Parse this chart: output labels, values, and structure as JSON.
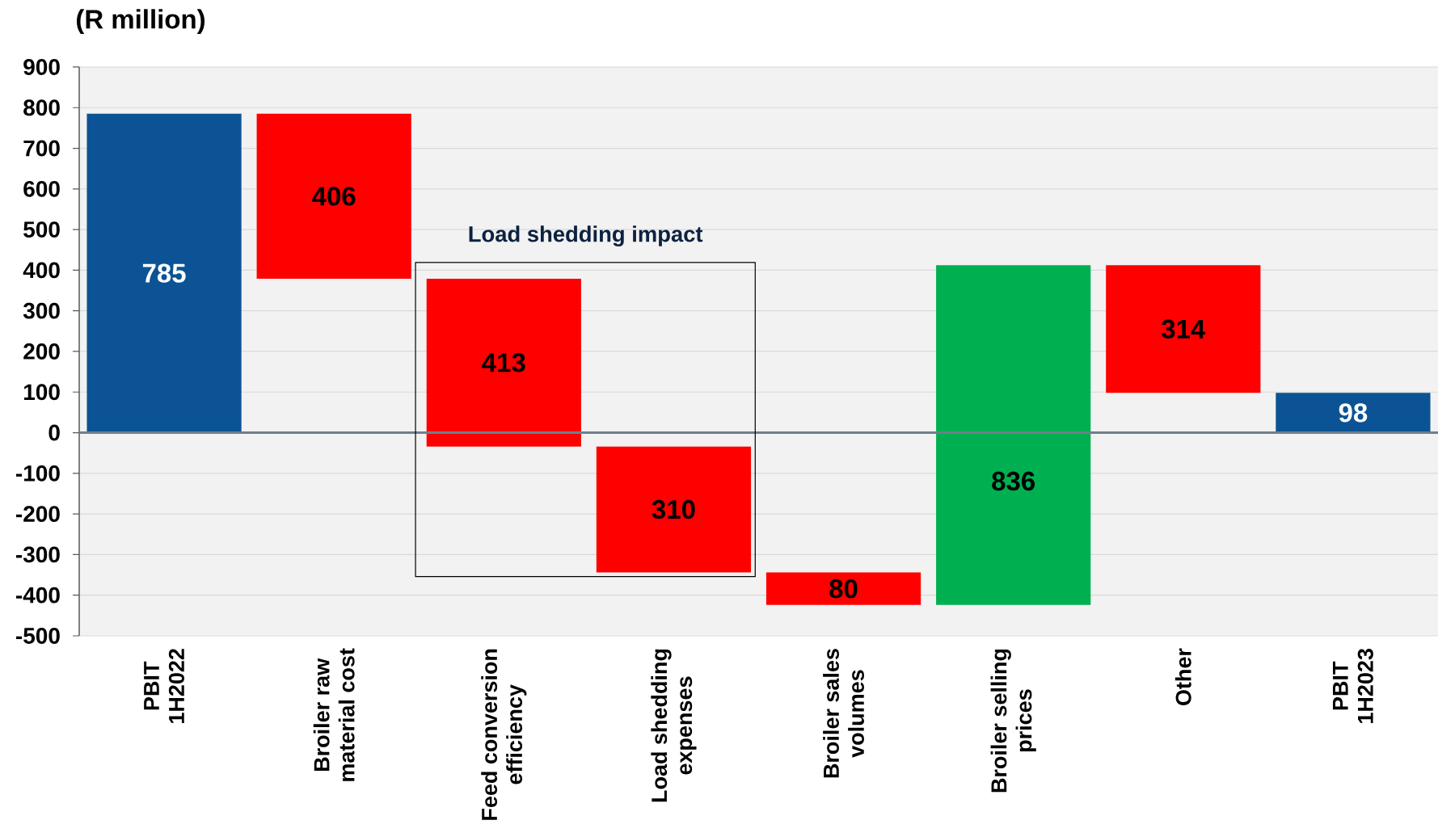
{
  "chart_data": {
    "type": "bar",
    "ylabel": "(R million)",
    "categories": [
      "PBIT\n1H2022",
      "Broiler raw\nmaterial cost",
      "Feed conversion\nefficiency",
      "Load shedding\nexpenses",
      "Broiler sales\nvolumes",
      "Broiler selling\nprices",
      "Other",
      "PBIT\n1H2023"
    ],
    "values": [
      785,
      406,
      413,
      310,
      80,
      836,
      314,
      98
    ],
    "base": [
      0,
      379,
      -34,
      -344,
      -424,
      -424,
      98,
      0
    ],
    "colors": [
      "#0b5394",
      "#ff0000",
      "#ff0000",
      "#ff0000",
      "#ff0000",
      "#00b050",
      "#ff0000",
      "#0b5394"
    ],
    "ylim": [
      -500,
      900
    ],
    "yticks": [
      -500,
      -400,
      -300,
      -200,
      -100,
      0,
      100,
      200,
      300,
      400,
      500,
      600,
      700,
      800,
      900
    ],
    "grid": "y",
    "data_labels": true,
    "annotations": [
      "Load shedding impact"
    ]
  }
}
